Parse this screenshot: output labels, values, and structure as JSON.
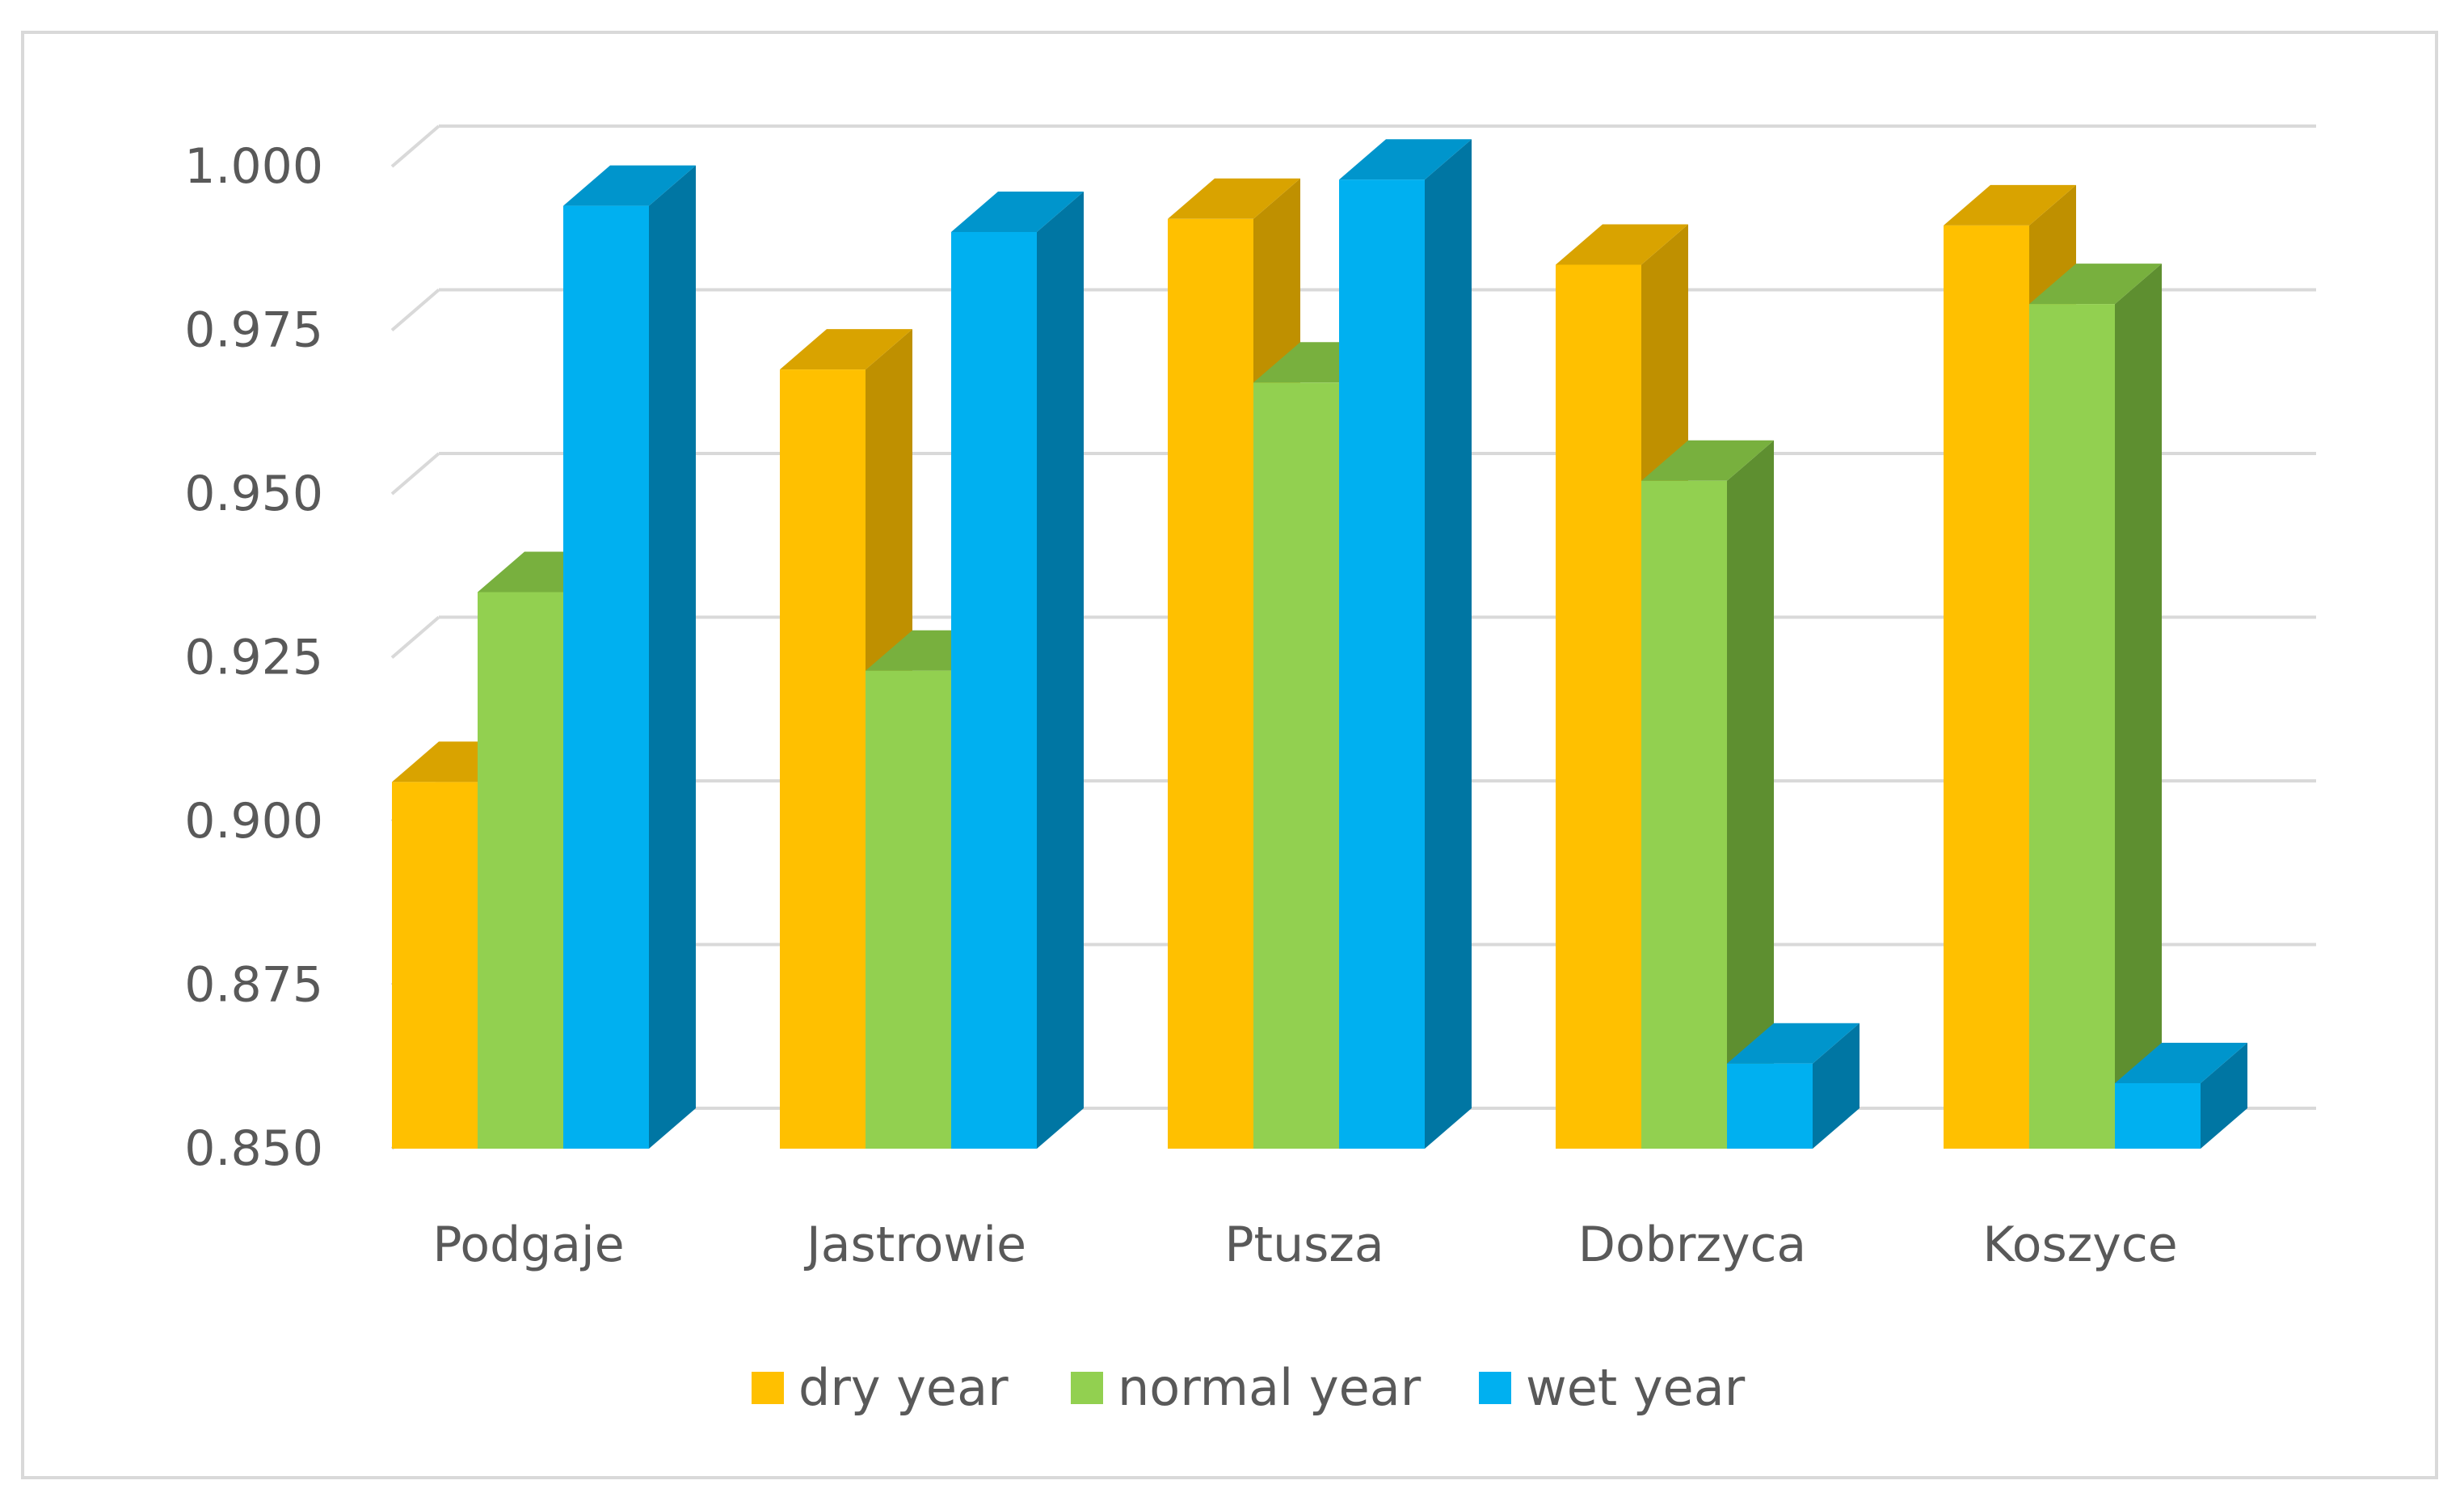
{
  "chart_data": {
    "type": "bar",
    "style": "3d-clustered-column",
    "title": "",
    "xlabel": "",
    "ylabel": "",
    "ylim": [
      0.85,
      1.0
    ],
    "yticks": [
      0.85,
      0.875,
      0.9,
      0.925,
      0.95,
      0.975,
      1.0
    ],
    "ytick_labels": [
      "0.850",
      "0.875",
      "0.900",
      "0.925",
      "0.950",
      "0.975",
      "1.000"
    ],
    "grid": true,
    "legend_position": "bottom",
    "categories": [
      "Podgaje",
      "Jastrowie",
      "Ptusza",
      "Dobrzyca",
      "Koszyce"
    ],
    "series": [
      {
        "name": "dry year",
        "color": "#FFC000",
        "side_color": "#BF9000",
        "top_color": "#D9A300",
        "values": [
          0.906,
          0.969,
          0.992,
          0.985,
          0.991
        ]
      },
      {
        "name": "normal year",
        "color": "#92D050",
        "side_color": "#5E8F30",
        "top_color": "#78B03E",
        "values": [
          0.935,
          0.923,
          0.967,
          0.952,
          0.979
        ]
      },
      {
        "name": "wet year",
        "color": "#00B0F0",
        "side_color": "#0076A3",
        "top_color": "#0095CC",
        "values": [
          0.994,
          0.99,
          0.998,
          0.863,
          0.86
        ]
      }
    ]
  }
}
